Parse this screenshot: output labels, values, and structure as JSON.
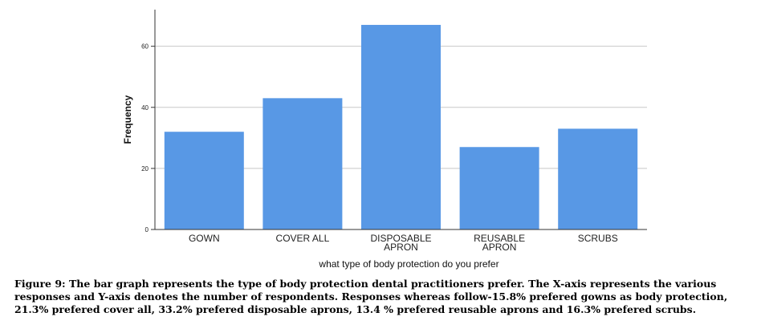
{
  "chart_data": {
    "type": "bar",
    "categories": [
      [
        "GOWN"
      ],
      [
        "COVER ALL"
      ],
      [
        "DISPOSABLE",
        "APRON"
      ],
      [
        "REUSABLE",
        "APRON"
      ],
      [
        "SCRUBS"
      ]
    ],
    "values": [
      32,
      43,
      67,
      27,
      33
    ],
    "ylabel": "Frequency",
    "xlabel": "what type of body protection do you prefer",
    "ylim": [
      0,
      72
    ],
    "yticks": [
      0,
      20,
      40,
      60
    ],
    "grid": "horizontal",
    "bar_color": "#5898e5"
  },
  "caption": "Figure 9: The bar graph represents the type of body protection dental practitioners prefer. The X-axis represents the various responses and Y-axis denotes the number of respondents. Responses whereas follow-15.8% prefered gowns as body protection, 21.3% prefered cover all, 33.2% prefered disposable aprons, 13.4 % prefered reusable aprons and 16.3% prefered scrubs."
}
